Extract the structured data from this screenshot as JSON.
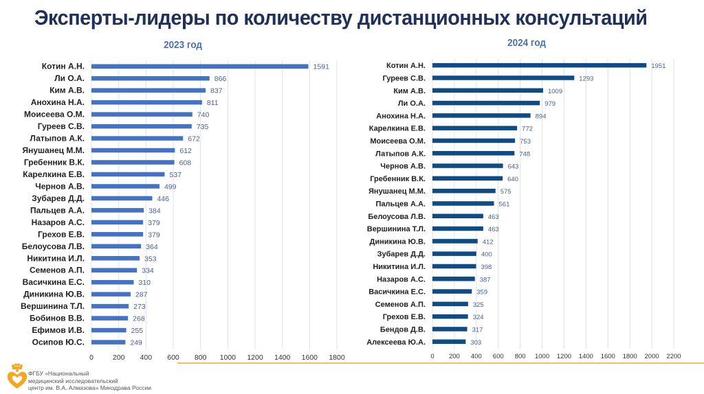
{
  "header": {
    "title": "Эксперты-лидеры по количеству дистанционных консультаций"
  },
  "footer": {
    "org_lines": [
      "ФГБУ «Национальный",
      "медицинский исследовательский",
      "центр им. В.А. Алмазова» Минздрава России"
    ],
    "logo_icon": "heart-crown-logo-icon",
    "accent_color": "#f0c060"
  },
  "chart_data": [
    {
      "type": "bar",
      "orientation": "horizontal",
      "title": "2023 год",
      "xlabel": "",
      "ylabel": "",
      "xlim": [
        0,
        1800
      ],
      "xticks": [
        0,
        200,
        400,
        600,
        800,
        1000,
        1200,
        1400,
        1600,
        1800
      ],
      "grid": true,
      "bar_color": "#4472c4",
      "categories": [
        "Котин А.Н.",
        "Ли О.А.",
        "Ким А.В.",
        "Анохина Н.А.",
        "Моисеева О.М.",
        "Гуреев С.В.",
        "Латыпов А.К.",
        "Янушанец М.М.",
        "Гребенник В.К.",
        "Карелкина Е.В.",
        "Чернов А.В.",
        "Зубарев Д.Д.",
        "Пальцев А.А.",
        "Назаров А.С.",
        "Грехов Е.В.",
        "Белоусова Л.В.",
        "Никитина И.Л.",
        "Семенов А.П.",
        "Васичкина Е.С.",
        "Диникина Ю.В.",
        "Вершинина Т.Л.",
        "Бобинов В.В.",
        "Ефимов И.В.",
        "Осипов Ю.С."
      ],
      "values": [
        1591,
        866,
        837,
        811,
        740,
        735,
        672,
        612,
        608,
        537,
        499,
        446,
        384,
        379,
        379,
        364,
        353,
        334,
        310,
        287,
        273,
        268,
        255,
        249
      ]
    },
    {
      "type": "bar",
      "orientation": "horizontal",
      "title": "2024 год",
      "xlabel": "",
      "ylabel": "",
      "xlim": [
        0,
        2200
      ],
      "xticks": [
        0,
        200,
        400,
        600,
        800,
        1000,
        1200,
        1400,
        1600,
        1800,
        2000,
        2200
      ],
      "grid": true,
      "bar_color": "#0f4c85",
      "categories": [
        "Котин А.Н.",
        "Гуреев С.В.",
        "Ким А.В.",
        "Ли О.А.",
        "Анохина Н.А.",
        "Карелкина Е.В.",
        "Моисеева О.М.",
        "Латыпов А.К.",
        "Чернов А.В.",
        "Гребенник В.К.",
        "Янушанец М.М.",
        "Пальцев А.А.",
        "Белоусова Л.В.",
        "Вершинина Т.Л.",
        "Диникина Ю.В.",
        "Зубарев Д.Д.",
        "Никитина И.Л.",
        "Назаров А.С.",
        "Васичкина Е.С.",
        "Семенов А.П.",
        "Грехов Е.В.",
        "Бендов Д.В.",
        "Алексеева Ю.А."
      ],
      "values": [
        1951,
        1293,
        1009,
        979,
        894,
        772,
        753,
        748,
        643,
        640,
        575,
        561,
        463,
        463,
        412,
        400,
        398,
        387,
        359,
        325,
        324,
        317,
        303
      ]
    }
  ]
}
